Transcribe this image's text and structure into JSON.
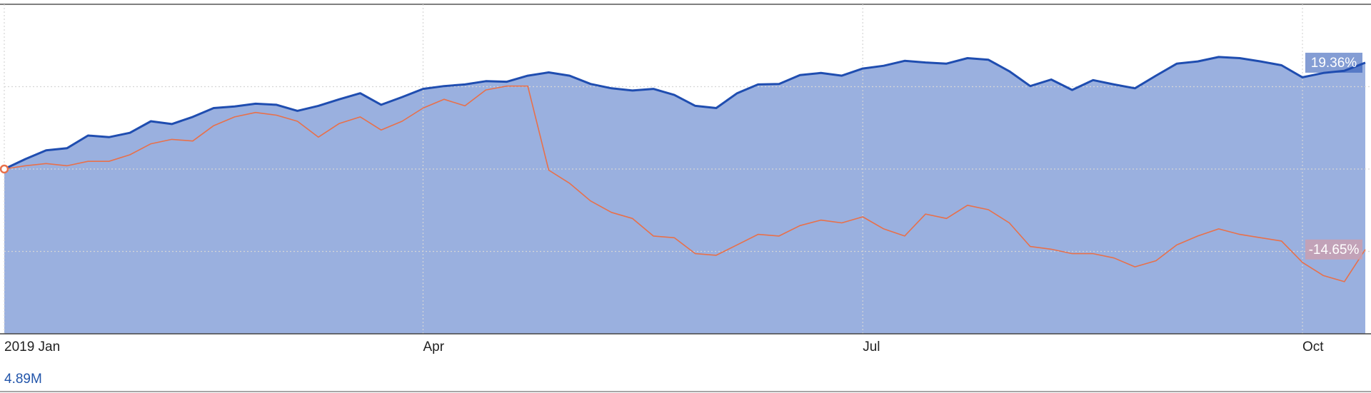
{
  "chart_data": {
    "type": "line",
    "categories": [
      "2019 Jan",
      null,
      null,
      null,
      null,
      null,
      null,
      null,
      null,
      null,
      null,
      null,
      null,
      null,
      null,
      null,
      null,
      null,
      null,
      null,
      "Apr",
      null,
      null,
      null,
      null,
      null,
      null,
      null,
      null,
      null,
      null,
      null,
      null,
      null,
      null,
      null,
      null,
      null,
      null,
      null,
      null,
      "Jul",
      null,
      null,
      null,
      null,
      null,
      null,
      null,
      null,
      null,
      null,
      null,
      null,
      null,
      null,
      null,
      null,
      null,
      null,
      null,
      null,
      "Oct",
      null,
      null,
      null
    ],
    "series": [
      {
        "color": "#1f4db0",
        "fill": "#9ab0df",
        "last_label": "19.36%",
        "values": [
          0,
          1.8,
          3.4,
          3.8,
          6.1,
          5.8,
          6.6,
          8.7,
          8.2,
          9.5,
          11.1,
          11.4,
          11.9,
          11.7,
          10.6,
          11.5,
          12.7,
          13.8,
          11.7,
          13.1,
          14.6,
          15.1,
          15.4,
          16.0,
          15.9,
          17.0,
          17.6,
          17.0,
          15.5,
          14.7,
          14.3,
          14.6,
          13.5,
          11.5,
          11.1,
          13.8,
          15.4,
          15.5,
          17.1,
          17.5,
          17.0,
          18.3,
          18.8,
          19.7,
          19.4,
          19.2,
          20.2,
          19.9,
          17.8,
          15.1,
          16.3,
          14.4,
          16.2,
          15.4,
          14.7,
          17.0,
          19.2,
          19.6,
          20.4,
          20.2,
          19.6,
          18.9,
          16.7,
          17.5,
          17.9,
          19.36
        ]
      },
      {
        "color": "#e8704a",
        "label_color": "#c9a0b2",
        "last_label": "-14.65%",
        "values": [
          0,
          0.6,
          1.0,
          0.6,
          1.4,
          1.4,
          2.6,
          4.6,
          5.4,
          5.1,
          7.9,
          9.5,
          10.3,
          9.8,
          8.7,
          5.8,
          8.3,
          9.5,
          7.1,
          8.7,
          11.1,
          12.7,
          11.5,
          14.4,
          15.1,
          15.1,
          -0.2,
          -2.6,
          -5.8,
          -7.9,
          -9.0,
          -12.2,
          -12.5,
          -15.4,
          -15.7,
          -13.8,
          -11.9,
          -12.2,
          -10.3,
          -9.3,
          -9.8,
          -8.7,
          -10.9,
          -12.2,
          -8.2,
          -9.0,
          -6.6,
          -7.4,
          -9.8,
          -14.1,
          -14.6,
          -15.4,
          -15.4,
          -16.2,
          -17.8,
          -16.7,
          -13.8,
          -12.2,
          -10.9,
          -11.9,
          -12.5,
          -13.1,
          -17.0,
          -19.4,
          -20.5,
          -14.65
        ]
      }
    ],
    "ylim": [
      -30,
      30
    ],
    "yticks": [
      -15,
      0,
      15
    ],
    "grid": true,
    "volume_label": "4.89M",
    "volume_color": "#2255aa"
  }
}
